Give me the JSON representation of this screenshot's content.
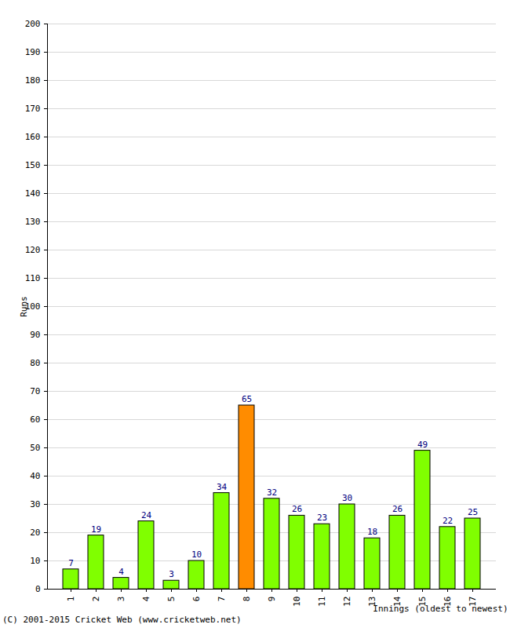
{
  "chart_data": {
    "type": "bar",
    "categories": [
      "1",
      "2",
      "3",
      "4",
      "5",
      "6",
      "7",
      "8",
      "9",
      "10",
      "11",
      "12",
      "13",
      "14",
      "15",
      "16",
      "17"
    ],
    "values": [
      7,
      19,
      4,
      24,
      3,
      10,
      34,
      65,
      32,
      26,
      23,
      30,
      18,
      26,
      49,
      22,
      25
    ],
    "colors": [
      "#80ff00",
      "#80ff00",
      "#80ff00",
      "#80ff00",
      "#80ff00",
      "#80ff00",
      "#80ff00",
      "#ff8c00",
      "#80ff00",
      "#80ff00",
      "#80ff00",
      "#80ff00",
      "#80ff00",
      "#80ff00",
      "#80ff00",
      "#80ff00",
      "#80ff00"
    ],
    "ylim": [
      0,
      200
    ],
    "yticks": [
      0,
      10,
      20,
      30,
      40,
      50,
      60,
      70,
      80,
      90,
      100,
      110,
      120,
      130,
      140,
      150,
      160,
      170,
      180,
      190,
      200
    ],
    "grid": true,
    "data_labels": true,
    "y_label": "Runs",
    "x_label": "Innings (oldest to newest)",
    "caption": "(C) 2001-2015 Cricket Web (www.cricketweb.net)"
  }
}
